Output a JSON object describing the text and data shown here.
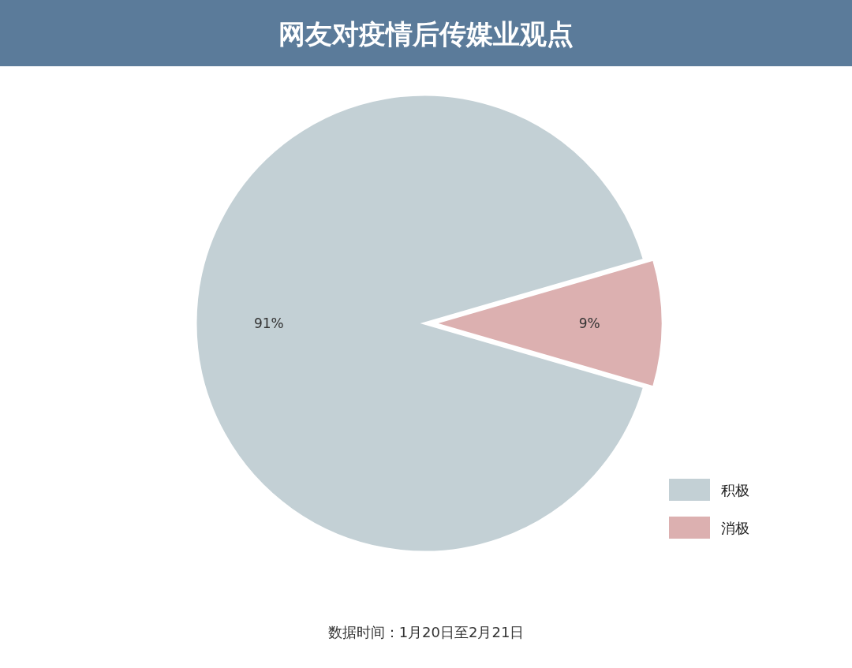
{
  "chart_data": {
    "type": "pie",
    "title": "网友对疫情后传媒业观点",
    "categories": [
      "积极",
      "消极"
    ],
    "values": [
      91,
      9
    ],
    "colors": [
      "#c3d0d5",
      "#dcb0b0"
    ],
    "value_labels": [
      "91%",
      "9%"
    ],
    "legend": "bottom right",
    "annotations": [
      "数据时间：1月20日至2月21日"
    ]
  }
}
